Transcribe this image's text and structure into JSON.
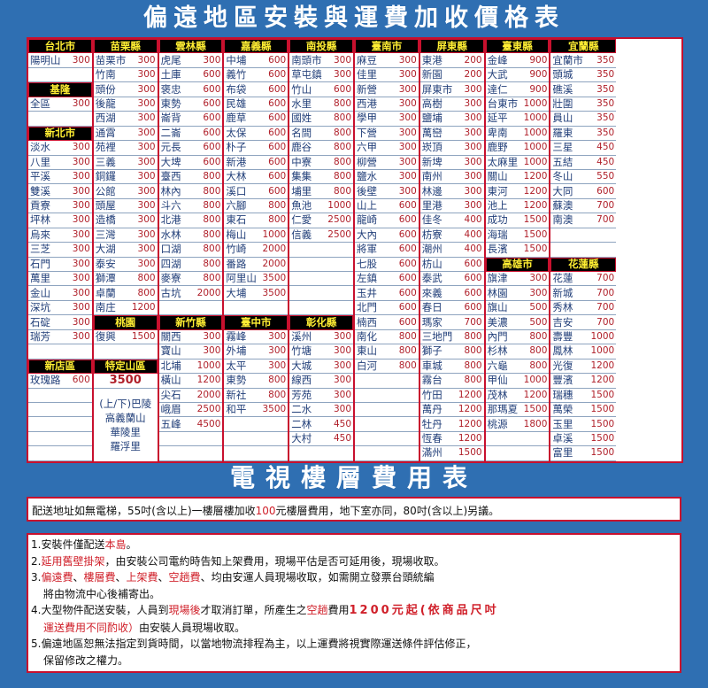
{
  "title": "偏遠地區安裝與運費加收價格表",
  "colors": {
    "background": "#2f6fb2",
    "header_bg": "#000000",
    "header_text": "#ffee33",
    "border": "#c8102e",
    "price": "#b0202a",
    "name": "#23407a"
  },
  "columns": [
    [
      {
        "title": "台北市",
        "items": [
          [
            "陽明山",
            "300"
          ],
          null
        ]
      },
      {
        "title": "基隆",
        "items": [
          [
            "全區",
            "300"
          ],
          null
        ]
      },
      {
        "title": "新北市",
        "items": [
          [
            "淡水",
            "300"
          ],
          [
            "八里",
            "300"
          ],
          [
            "平溪",
            "300"
          ],
          [
            "雙溪",
            "300"
          ],
          [
            "貢寮",
            "300"
          ],
          [
            "坪林",
            "300"
          ],
          [
            "烏來",
            "300"
          ],
          [
            "三芝",
            "300"
          ],
          [
            "石門",
            "300"
          ],
          [
            "萬里",
            "300"
          ],
          [
            "金山",
            "300"
          ],
          [
            "深坑",
            "300"
          ],
          [
            "石碇",
            "300"
          ],
          [
            "瑞芳",
            "300"
          ],
          null
        ]
      },
      {
        "title": "新店區",
        "items": [
          [
            "玫瑰路",
            "600"
          ],
          null,
          null,
          null,
          null,
          null
        ]
      }
    ],
    [
      {
        "title": "苗栗縣",
        "items": [
          [
            "苗栗市",
            "300"
          ],
          [
            "竹南",
            "300"
          ],
          [
            "頭份",
            "300"
          ],
          [
            "後龍",
            "300"
          ],
          [
            "西湖",
            "300"
          ],
          [
            "通霄",
            "300"
          ],
          [
            "苑裡",
            "300"
          ],
          [
            "三義",
            "300"
          ],
          [
            "銅鑼",
            "300"
          ],
          [
            "公館",
            "300"
          ],
          [
            "頭屋",
            "300"
          ],
          [
            "造橋",
            "300"
          ],
          [
            "三灣",
            "300"
          ],
          [
            "大湖",
            "300"
          ],
          [
            "泰安",
            "300"
          ],
          [
            "獅潭",
            "800"
          ],
          [
            "卓蘭",
            "800"
          ],
          [
            "南庄",
            "1200"
          ]
        ]
      },
      {
        "title": "桃園",
        "items": [
          [
            "復興",
            "1500"
          ],
          null
        ]
      },
      {
        "title": "特定山區",
        "price": "3500",
        "lines": [
          "(上/下)巴陵",
          "高義蘭山",
          "華陵里",
          "羅浮里"
        ]
      }
    ],
    [
      {
        "title": "雲林縣",
        "items": [
          [
            "虎尾",
            "300"
          ],
          [
            "土庫",
            "600"
          ],
          [
            "褒忠",
            "600"
          ],
          [
            "東勢",
            "600"
          ],
          [
            "崙背",
            "600"
          ],
          [
            "二崙",
            "600"
          ],
          [
            "元長",
            "600"
          ],
          [
            "大埤",
            "600"
          ],
          [
            "臺西",
            "800"
          ],
          [
            "林內",
            "800"
          ],
          [
            "斗六",
            "800"
          ],
          [
            "北港",
            "800"
          ],
          [
            "水林",
            "800"
          ],
          [
            "口湖",
            "800"
          ],
          [
            "四湖",
            "800"
          ],
          [
            "麥寮",
            "800"
          ],
          [
            "古坑",
            "2000"
          ],
          null
        ]
      },
      {
        "title": "新竹縣",
        "items": [
          [
            "關西",
            "300"
          ],
          [
            "寶山",
            "300"
          ],
          [
            "北埔",
            "1000"
          ],
          [
            "橫山",
            "1200"
          ],
          [
            "尖石",
            "2000"
          ],
          [
            "峨眉",
            "2500"
          ],
          [
            "五峰",
            "4500"
          ],
          null,
          null
        ]
      }
    ],
    [
      {
        "title": "嘉義縣",
        "items": [
          [
            "中埔",
            "600"
          ],
          [
            "義竹",
            "600"
          ],
          [
            "布袋",
            "600"
          ],
          [
            "民雄",
            "600"
          ],
          [
            "鹿草",
            "600"
          ],
          [
            "太保",
            "600"
          ],
          [
            "朴子",
            "600"
          ],
          [
            "新港",
            "600"
          ],
          [
            "大林",
            "600"
          ],
          [
            "溪口",
            "600"
          ],
          [
            "六腳",
            "800"
          ],
          [
            "東石",
            "800"
          ],
          [
            "梅山",
            "1000"
          ],
          [
            "竹崎",
            "2000"
          ],
          [
            "番路",
            "2000"
          ],
          [
            "阿里山",
            "3500"
          ],
          [
            "大埔",
            "3500"
          ],
          null
        ]
      },
      {
        "title": "臺中市",
        "items": [
          [
            "霧峰",
            "300"
          ],
          [
            "外埔",
            "300"
          ],
          [
            "太平",
            "300"
          ],
          [
            "東勢",
            "800"
          ],
          [
            "新社",
            "800"
          ],
          [
            "和平",
            "3500"
          ],
          null,
          null,
          null
        ]
      }
    ],
    [
      {
        "title": "南投縣",
        "items": [
          [
            "南頭市",
            "300"
          ],
          [
            "草屯鎮",
            "300"
          ],
          [
            "竹山",
            "600"
          ],
          [
            "水里",
            "800"
          ],
          [
            "國姓",
            "800"
          ],
          [
            "名間",
            "800"
          ],
          [
            "鹿谷",
            "800"
          ],
          [
            "中寮",
            "800"
          ],
          [
            "集集",
            "800"
          ],
          [
            "埔里",
            "800"
          ],
          [
            "魚池",
            "1000"
          ],
          [
            "仁愛",
            "2500"
          ],
          [
            "信義",
            "2500"
          ],
          null,
          null,
          null,
          null,
          null
        ]
      },
      {
        "title": "彰化縣",
        "items": [
          [
            "溪州",
            "300"
          ],
          [
            "竹塘",
            "300"
          ],
          [
            "大城",
            "300"
          ],
          [
            "線西",
            "300"
          ],
          [
            "芳苑",
            "300"
          ],
          [
            "二水",
            "300"
          ],
          [
            "二林",
            "450"
          ],
          [
            "大村",
            "450"
          ],
          null
        ]
      }
    ],
    [
      {
        "title": "臺南市",
        "items": [
          [
            "麻豆",
            "300"
          ],
          [
            "佳里",
            "300"
          ],
          [
            "新營",
            "300"
          ],
          [
            "西港",
            "300"
          ],
          [
            "學甲",
            "300"
          ],
          [
            "下營",
            "300"
          ],
          [
            "六甲",
            "300"
          ],
          [
            "柳營",
            "300"
          ],
          [
            "鹽水",
            "300"
          ],
          [
            "後壁",
            "300"
          ],
          [
            "山上",
            "600"
          ],
          [
            "龍崎",
            "600"
          ],
          [
            "大內",
            "600"
          ],
          [
            "將軍",
            "600"
          ],
          [
            "七股",
            "600"
          ],
          [
            "左鎮",
            "600"
          ],
          [
            "玉井",
            "600"
          ],
          [
            "北門",
            "600"
          ],
          [
            "楠西",
            "600"
          ],
          [
            "南化",
            "800"
          ],
          [
            "東山",
            "800"
          ],
          [
            "白河",
            "800"
          ],
          null,
          null,
          null,
          null,
          null,
          null
        ]
      }
    ],
    [
      {
        "title": "屏東縣",
        "items": [
          [
            "東港",
            "200"
          ],
          [
            "新園",
            "200"
          ],
          [
            "屏東市",
            "300"
          ],
          [
            "高樹",
            "300"
          ],
          [
            "鹽埔",
            "300"
          ],
          [
            "萬巒",
            "300"
          ],
          [
            "崁頂",
            "300"
          ],
          [
            "新埤",
            "300"
          ],
          [
            "南州",
            "300"
          ],
          [
            "林邊",
            "300"
          ],
          [
            "里港",
            "300"
          ],
          [
            "佳冬",
            "400"
          ],
          [
            "枋寮",
            "400"
          ],
          [
            "潮州",
            "400"
          ],
          [
            "枋山",
            "600"
          ],
          [
            "泰武",
            "600"
          ],
          [
            "來義",
            "600"
          ],
          [
            "春日",
            "600"
          ],
          [
            "瑪家",
            "700"
          ],
          [
            "三地門",
            "800"
          ],
          [
            "獅子",
            "800"
          ],
          [
            "車城",
            "800"
          ],
          [
            "霧台",
            "800"
          ],
          [
            "竹田",
            "1200"
          ],
          [
            "萬丹",
            "1200"
          ],
          [
            "牡丹",
            "1200"
          ],
          [
            "恆春",
            "1200"
          ],
          [
            "滿州",
            "1500"
          ]
        ]
      }
    ],
    [
      {
        "title": "臺東縣",
        "items": [
          [
            "金峰",
            "900"
          ],
          [
            "大武",
            "900"
          ],
          [
            "達仁",
            "900"
          ],
          [
            "台東市",
            "1000"
          ],
          [
            "延平",
            "1000"
          ],
          [
            "卑南",
            "1000"
          ],
          [
            "鹿野",
            "1000"
          ],
          [
            "太麻里",
            "1000"
          ],
          [
            "關山",
            "1200"
          ],
          [
            "東河",
            "1200"
          ],
          [
            "池上",
            "1200"
          ],
          [
            "成功",
            "1500"
          ],
          [
            "海瑞",
            "1500"
          ],
          [
            "長濱",
            "1500"
          ]
        ]
      },
      {
        "title": "高雄市",
        "items": [
          [
            "旗津",
            "300"
          ],
          [
            "林園",
            "300"
          ],
          [
            "旗山",
            "500"
          ],
          [
            "美濃",
            "500"
          ],
          [
            "內門",
            "800"
          ],
          [
            "杉林",
            "800"
          ],
          [
            "六龜",
            "800"
          ],
          [
            "甲仙",
            "1000"
          ],
          [
            "茂林",
            "1200"
          ],
          [
            "那瑪夏",
            "1500"
          ],
          [
            "桃源",
            "1800"
          ],
          null,
          null
        ]
      }
    ],
    [
      {
        "title": "宜蘭縣",
        "items": [
          [
            "宜蘭市",
            "350"
          ],
          [
            "頭城",
            "350"
          ],
          [
            "礁溪",
            "350"
          ],
          [
            "壯圍",
            "350"
          ],
          [
            "員山",
            "350"
          ],
          [
            "羅東",
            "350"
          ],
          [
            "三星",
            "450"
          ],
          [
            "五結",
            "450"
          ],
          [
            "冬山",
            "550"
          ],
          [
            "大同",
            "600"
          ],
          [
            "蘇澳",
            "700"
          ],
          [
            "南澳",
            "700"
          ],
          null,
          null
        ]
      },
      {
        "title": "花蓮縣",
        "items": [
          [
            "花蓮",
            "700"
          ],
          [
            "新城",
            "700"
          ],
          [
            "秀林",
            "700"
          ],
          [
            "吉安",
            "700"
          ],
          [
            "壽豐",
            "1000"
          ],
          [
            "鳳林",
            "1000"
          ],
          [
            "光復",
            "1200"
          ],
          [
            "豐濱",
            "1200"
          ],
          [
            "瑞穗",
            "1500"
          ],
          [
            "萬榮",
            "1500"
          ],
          [
            "玉里",
            "1500"
          ],
          [
            "卓溪",
            "1500"
          ],
          [
            "富里",
            "1500"
          ]
        ]
      }
    ]
  ],
  "tv_title": "電視樓層費用表",
  "tv_note": [
    {
      "t": "配送地址如無電梯，55吋(含以上)一樓層樓加收"
    },
    {
      "t": "100",
      "s": "red"
    },
    {
      "t": "元樓層費用，地下室亦同，80吋(含以上)另議。"
    }
  ],
  "notes": [
    [
      {
        "t": "1.安裝件僅配送"
      },
      {
        "t": "本島",
        "s": "red"
      },
      {
        "t": "。"
      }
    ],
    [
      {
        "t": "2."
      },
      {
        "t": "延用舊壁掛架",
        "s": "red"
      },
      {
        "t": "，由安裝公司電約時告知上架費用，現場平估是否可延用後，現場收取。"
      }
    ],
    [
      {
        "t": "3."
      },
      {
        "t": "偏遠費",
        "s": "red"
      },
      {
        "t": "、"
      },
      {
        "t": "樓層費",
        "s": "red"
      },
      {
        "t": "、"
      },
      {
        "t": "上架費",
        "s": "red"
      },
      {
        "t": "、"
      },
      {
        "t": "空趟費",
        "s": "red"
      },
      {
        "t": "、均由安運人員現場收取，如需開立發票台頭統編"
      }
    ],
    [
      {
        "t": "將由物流中心後補寄出。",
        "s": "ind"
      }
    ],
    [
      {
        "t": "4.大型物件配送安裝，人員到"
      },
      {
        "t": "現場後",
        "s": "red"
      },
      {
        "t": "才取消訂單，所產生之"
      },
      {
        "t": "空趟",
        "s": "red"
      },
      {
        "t": "費用"
      },
      {
        "t": "1200元起(依商品尺吋",
        "s": "big"
      }
    ],
    [
      {
        "t": "運送費用不同酌收）",
        "s": "red ind"
      },
      {
        "t": "由安裝人員現場收取。"
      }
    ],
    [
      {
        "t": "5.偏遠地區恕無法指定到貨時間，以當地物流排程為主，以上運費將視實際運送條件評估修正，"
      }
    ],
    [
      {
        "t": "保留修改之權力。",
        "s": "ind"
      }
    ]
  ]
}
